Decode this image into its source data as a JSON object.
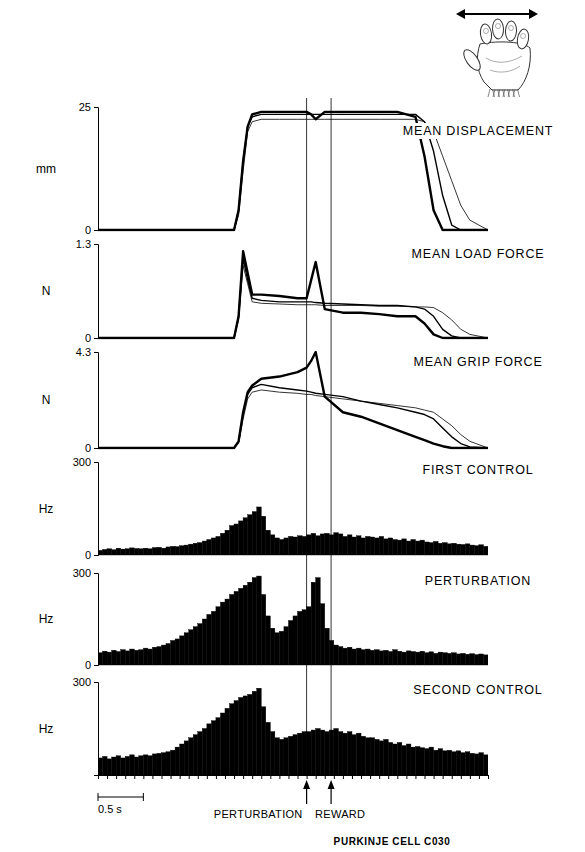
{
  "chart_data": {
    "type": "multipanel",
    "title": "PURKINJE CELL C030",
    "xlim": [
      0,
      4.3
    ],
    "xticks": [
      0,
      0.1,
      0.2,
      0.3,
      0.4,
      0.5,
      0.6,
      0.7,
      0.8,
      0.9,
      1,
      1.1,
      1.2,
      1.3,
      1.4,
      1.5,
      1.6,
      1.7,
      1.8,
      1.9,
      2,
      2.1,
      2.2,
      2.3,
      2.4,
      2.5,
      2.6,
      2.7,
      2.8,
      2.9,
      3,
      3.1,
      3.2,
      3.3,
      3.4,
      3.5,
      3.6,
      3.7,
      3.8,
      3.9,
      4,
      4.1,
      4.2,
      4.3
    ],
    "tick_labels": "y",
    "scale_bar": {
      "value": 0.5,
      "label": "0.5 s"
    },
    "events": [
      {
        "x": 2.3,
        "label": "PERTURBATION"
      },
      {
        "x": 2.57,
        "label": "REWARD"
      }
    ],
    "panels": [
      {
        "type": "line",
        "title": "MEAN DISPLACEMENT",
        "y_label": "mm",
        "ylim": [
          0,
          25
        ],
        "yticks": [
          0,
          25
        ],
        "x": [
          0,
          1.5,
          1.55,
          1.6,
          1.65,
          1.7,
          1.8,
          2.0,
          2.2,
          2.3,
          2.35,
          2.4,
          2.5,
          2.7,
          2.9,
          3.1,
          3.3,
          3.5,
          3.6,
          3.7,
          3.8,
          3.9,
          4.0,
          4.1,
          4.3
        ],
        "series": [
          {
            "color": "#000000",
            "line_style": "thin",
            "values": [
              0,
              0,
              3,
              12,
              20,
              22,
              22.5,
              22.5,
              22.5,
              22.5,
              22.5,
              22.5,
              22.5,
              22.5,
              22.5,
              22.5,
              22.5,
              22.5,
              22,
              20,
              15,
              10,
              5,
              2,
              0
            ]
          },
          {
            "color": "#000000",
            "line_style": "medium",
            "values": [
              0,
              0,
              4,
              14,
              21,
              23,
              23.5,
              23.5,
              23.5,
              23.5,
              23.5,
              23.5,
              23.5,
              23.5,
              23.5,
              23.5,
              23.5,
              23.5,
              22,
              16,
              7,
              1,
              0,
              0,
              0
            ]
          },
          {
            "color": "#000000",
            "line_style": "thick",
            "values": [
              0,
              0,
              4,
              14,
              21,
              23.5,
              24,
              24,
              24,
              24,
              23.5,
              22.5,
              24,
              24,
              24,
              24,
              24,
              23,
              15,
              4,
              0,
              0,
              0,
              0,
              0
            ]
          }
        ]
      },
      {
        "type": "line",
        "title": "MEAN LOAD FORCE",
        "y_label": "N",
        "ylim": [
          0,
          1.3
        ],
        "yticks": [
          0,
          1.3
        ],
        "x": [
          0,
          1.5,
          1.55,
          1.6,
          1.65,
          1.7,
          1.8,
          2.0,
          2.2,
          2.3,
          2.35,
          2.4,
          2.5,
          2.7,
          2.9,
          3.1,
          3.3,
          3.5,
          3.6,
          3.7,
          3.8,
          3.9,
          4.0,
          4.1,
          4.3
        ],
        "series": [
          {
            "color": "#000000",
            "line_style": "thin",
            "values": [
              0,
              0,
              0.25,
              1.0,
              0.75,
              0.5,
              0.48,
              0.47,
              0.46,
              0.46,
              0.46,
              0.46,
              0.45,
              0.45,
              0.45,
              0.44,
              0.44,
              0.43,
              0.43,
              0.42,
              0.35,
              0.25,
              0.12,
              0.05,
              0
            ]
          },
          {
            "color": "#000000",
            "line_style": "medium",
            "values": [
              0,
              0,
              0.3,
              1.1,
              0.8,
              0.55,
              0.52,
              0.5,
              0.5,
              0.5,
              0.5,
              0.49,
              0.48,
              0.47,
              0.46,
              0.45,
              0.45,
              0.43,
              0.4,
              0.3,
              0.12,
              0.03,
              0,
              0,
              0
            ]
          },
          {
            "color": "#000000",
            "line_style": "thick",
            "values": [
              0,
              0,
              0.3,
              1.2,
              0.9,
              0.6,
              0.6,
              0.58,
              0.55,
              0.55,
              0.8,
              1.05,
              0.4,
              0.35,
              0.35,
              0.33,
              0.3,
              0.3,
              0.2,
              0.05,
              0,
              0,
              0,
              0,
              0
            ]
          }
        ]
      },
      {
        "type": "line",
        "title": "MEAN GRIP FORCE",
        "y_label": "N",
        "ylim": [
          0,
          4.3
        ],
        "yticks": [
          0,
          4.3
        ],
        "x": [
          0,
          1.5,
          1.55,
          1.6,
          1.65,
          1.7,
          1.8,
          2.0,
          2.2,
          2.3,
          2.35,
          2.4,
          2.5,
          2.7,
          2.9,
          3.1,
          3.3,
          3.5,
          3.6,
          3.7,
          3.8,
          3.9,
          4.0,
          4.1,
          4.3
        ],
        "series": [
          {
            "color": "#000000",
            "line_style": "thin",
            "values": [
              0,
              0,
              0.2,
              1.3,
              2.2,
              2.5,
              2.6,
              2.5,
              2.45,
              2.4,
              2.4,
              2.35,
              2.3,
              2.2,
              2.1,
              2.0,
              1.9,
              1.8,
              1.7,
              1.6,
              1.3,
              1.0,
              0.6,
              0.3,
              0
            ]
          },
          {
            "color": "#000000",
            "line_style": "medium",
            "values": [
              0,
              0,
              0.3,
              1.5,
              2.4,
              2.7,
              2.85,
              2.7,
              2.6,
              2.55,
              2.5,
              2.45,
              2.4,
              2.3,
              2.1,
              1.95,
              1.8,
              1.6,
              1.5,
              1.3,
              0.9,
              0.5,
              0.2,
              0.05,
              0
            ]
          },
          {
            "color": "#000000",
            "line_style": "thick",
            "values": [
              0,
              0,
              0.3,
              1.6,
              2.5,
              2.8,
              3.1,
              3.2,
              3.4,
              3.6,
              3.9,
              4.3,
              2.3,
              1.6,
              1.4,
              1.1,
              0.8,
              0.5,
              0.35,
              0.2,
              0.08,
              0,
              0,
              0,
              0
            ]
          }
        ]
      },
      {
        "type": "histogram",
        "title": "FIRST CONTROL",
        "y_label": "Hz",
        "ylim": [
          0,
          300
        ],
        "yticks": [
          0,
          300
        ],
        "bins": [
          0,
          0.05,
          0.1,
          0.15,
          0.2,
          0.25,
          0.3,
          0.35,
          0.4,
          0.45,
          0.5,
          0.55,
          0.6,
          0.65,
          0.7,
          0.75,
          0.8,
          0.85,
          0.9,
          0.95,
          1,
          1.05,
          1.1,
          1.15,
          1.2,
          1.25,
          1.3,
          1.35,
          1.4,
          1.45,
          1.5,
          1.55,
          1.6,
          1.65,
          1.7,
          1.75,
          1.8,
          1.85,
          1.9,
          1.95,
          2,
          2.05,
          2.1,
          2.15,
          2.2,
          2.25,
          2.3,
          2.35,
          2.4,
          2.45,
          2.5,
          2.55,
          2.6,
          2.65,
          2.7,
          2.75,
          2.8,
          2.85,
          2.9,
          2.95,
          3,
          3.05,
          3.1,
          3.15,
          3.2,
          3.25,
          3.3,
          3.35,
          3.4,
          3.45,
          3.5,
          3.55,
          3.6,
          3.65,
          3.7,
          3.75,
          3.8,
          3.85,
          3.9,
          3.95,
          4,
          4.05,
          4.1,
          4.15,
          4.2,
          4.25,
          4.3
        ],
        "series": [
          {
            "color": "#000000",
            "values": [
              15,
              18,
              20,
              17,
              22,
              19,
              20,
              23,
              21,
              20,
              22,
              20,
              24,
              25,
              22,
              26,
              28,
              27,
              30,
              32,
              35,
              38,
              40,
              45,
              50,
              55,
              60,
              70,
              80,
              95,
              100,
              110,
              120,
              130,
              140,
              155,
              125,
              80,
              65,
              55,
              50,
              55,
              60,
              58,
              62,
              60,
              65,
              70,
              62,
              68,
              70,
              65,
              72,
              68,
              60,
              65,
              58,
              62,
              55,
              60,
              58,
              55,
              60,
              52,
              55,
              50,
              48,
              52,
              45,
              50,
              45,
              48,
              42,
              40,
              44,
              38,
              40,
              36,
              38,
              35,
              34,
              36,
              32,
              30,
              33,
              28
            ]
          }
        ]
      },
      {
        "type": "histogram",
        "title": "PERTURBATION",
        "y_label": "Hz",
        "ylim": [
          0,
          300
        ],
        "yticks": [
          0,
          300
        ],
        "bins": [
          0,
          0.05,
          0.1,
          0.15,
          0.2,
          0.25,
          0.3,
          0.35,
          0.4,
          0.45,
          0.5,
          0.55,
          0.6,
          0.65,
          0.7,
          0.75,
          0.8,
          0.85,
          0.9,
          0.95,
          1,
          1.05,
          1.1,
          1.15,
          1.2,
          1.25,
          1.3,
          1.35,
          1.4,
          1.45,
          1.5,
          1.55,
          1.6,
          1.65,
          1.7,
          1.75,
          1.8,
          1.85,
          1.9,
          1.95,
          2,
          2.05,
          2.1,
          2.15,
          2.2,
          2.25,
          2.3,
          2.35,
          2.4,
          2.45,
          2.5,
          2.55,
          2.6,
          2.65,
          2.7,
          2.75,
          2.8,
          2.85,
          2.9,
          2.95,
          3,
          3.05,
          3.1,
          3.15,
          3.2,
          3.25,
          3.3,
          3.35,
          3.4,
          3.45,
          3.5,
          3.55,
          3.6,
          3.65,
          3.7,
          3.75,
          3.8,
          3.85,
          3.9,
          3.95,
          4,
          4.05,
          4.1,
          4.15,
          4.2,
          4.25,
          4.3
        ],
        "series": [
          {
            "color": "#000000",
            "values": [
              40,
              45,
              42,
              48,
              44,
              50,
              46,
              52,
              48,
              50,
              55,
              52,
              58,
              60,
              65,
              70,
              80,
              85,
              95,
              105,
              115,
              125,
              135,
              150,
              165,
              175,
              190,
              205,
              215,
              230,
              240,
              250,
              260,
              270,
              285,
              290,
              230,
              160,
              120,
              105,
              110,
              125,
              145,
              160,
              175,
              180,
              190,
              270,
              285,
              200,
              120,
              80,
              65,
              60,
              55,
              58,
              52,
              55,
              50,
              52,
              48,
              50,
              46,
              48,
              44,
              50,
              45,
              42,
              46,
              44,
              42,
              45,
              40,
              43,
              38,
              42,
              40,
              38,
              40,
              36,
              38,
              35,
              37,
              34,
              36,
              33
            ]
          }
        ]
      },
      {
        "type": "histogram",
        "title": "SECOND CONTROL",
        "y_label": "Hz",
        "ylim": [
          0,
          300
        ],
        "yticks": [
          300
        ],
        "bins": [
          0,
          0.05,
          0.1,
          0.15,
          0.2,
          0.25,
          0.3,
          0.35,
          0.4,
          0.45,
          0.5,
          0.55,
          0.6,
          0.65,
          0.7,
          0.75,
          0.8,
          0.85,
          0.9,
          0.95,
          1,
          1.05,
          1.1,
          1.15,
          1.2,
          1.25,
          1.3,
          1.35,
          1.4,
          1.45,
          1.5,
          1.55,
          1.6,
          1.65,
          1.7,
          1.75,
          1.8,
          1.85,
          1.9,
          1.95,
          2,
          2.05,
          2.1,
          2.15,
          2.2,
          2.25,
          2.3,
          2.35,
          2.4,
          2.45,
          2.5,
          2.55,
          2.6,
          2.65,
          2.7,
          2.75,
          2.8,
          2.85,
          2.9,
          2.95,
          3,
          3.05,
          3.1,
          3.15,
          3.2,
          3.25,
          3.3,
          3.35,
          3.4,
          3.45,
          3.5,
          3.55,
          3.6,
          3.65,
          3.7,
          3.75,
          3.8,
          3.85,
          3.9,
          3.95,
          4,
          4.05,
          4.1,
          4.15,
          4.2,
          4.25,
          4.3
        ],
        "series": [
          {
            "color": "#000000",
            "values": [
              55,
              60,
              52,
              58,
              62,
              55,
              60,
              65,
              58,
              62,
              65,
              62,
              68,
              70,
              72,
              75,
              80,
              90,
              100,
              110,
              120,
              130,
              140,
              150,
              165,
              175,
              185,
              200,
              215,
              230,
              240,
              250,
              255,
              260,
              270,
              280,
              220,
              170,
              140,
              120,
              115,
              120,
              125,
              130,
              135,
              140,
              140,
              145,
              150,
              145,
              140,
              145,
              150,
              140,
              135,
              140,
              130,
              135,
              125,
              120,
              120,
              115,
              110,
              115,
              105,
              100,
              105,
              95,
              100,
              90,
              92,
              88,
              85,
              90,
              80,
              85,
              78,
              80,
              75,
              78,
              72,
              75,
              70,
              68,
              72,
              65
            ]
          }
        ]
      }
    ]
  }
}
